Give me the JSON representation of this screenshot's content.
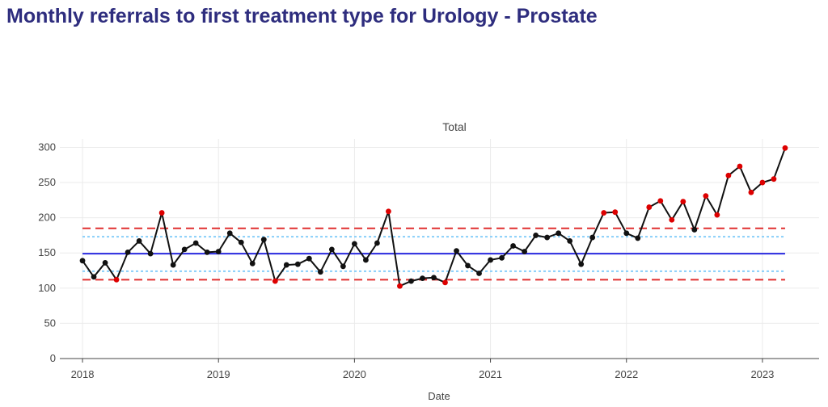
{
  "page": {
    "title": "Monthly referrals to first treatment type for Urology - Prostate"
  },
  "chart_data": {
    "type": "line",
    "title": "Total",
    "xlabel": "Date",
    "ylabel": "",
    "xlim": [
      "2017-11",
      "2023-06"
    ],
    "ylim": [
      0,
      312
    ],
    "grid": true,
    "x_ticks": [
      "2018",
      "2019",
      "2020",
      "2021",
      "2022",
      "2023"
    ],
    "y_ticks": [
      0,
      50,
      100,
      150,
      200,
      250,
      300
    ],
    "colors": {
      "line": "#111111",
      "point_normal": "#111111",
      "point_special": "#dd0000",
      "mean": "#2a2ae0",
      "control_limit": "#e03030",
      "warning_limit": "#87cefa",
      "title": "#2e2d7e"
    },
    "reference_lines": {
      "mean": 149,
      "upper_control": 185,
      "lower_control": 112,
      "upper_warning": 173,
      "lower_warning": 124
    },
    "series": [
      {
        "x": [
          "2018-01",
          "2018-02",
          "2018-03",
          "2018-04",
          "2018-05",
          "2018-06",
          "2018-07",
          "2018-08",
          "2018-09",
          "2018-10",
          "2018-11",
          "2018-12",
          "2019-01",
          "2019-02",
          "2019-03",
          "2019-04",
          "2019-05",
          "2019-06",
          "2019-07",
          "2019-08",
          "2019-09",
          "2019-10",
          "2019-11",
          "2019-12",
          "2020-01",
          "2020-02",
          "2020-03",
          "2020-04",
          "2020-05",
          "2020-06",
          "2020-07",
          "2020-08",
          "2020-09",
          "2020-10",
          "2020-11",
          "2020-12",
          "2021-01",
          "2021-02",
          "2021-03",
          "2021-04",
          "2021-05",
          "2021-06",
          "2021-07",
          "2021-08",
          "2021-09",
          "2021-10",
          "2021-11",
          "2021-12",
          "2022-01",
          "2022-02",
          "2022-03",
          "2022-04",
          "2022-05",
          "2022-06",
          "2022-07",
          "2022-08",
          "2022-09",
          "2022-10",
          "2022-11",
          "2022-12",
          "2023-01",
          "2023-02",
          "2023-03"
        ],
        "values": [
          139,
          116,
          136,
          112,
          151,
          167,
          149,
          207,
          133,
          155,
          164,
          151,
          152,
          178,
          165,
          135,
          169,
          110,
          133,
          134,
          142,
          123,
          155,
          131,
          163,
          140,
          164,
          209,
          103,
          110,
          114,
          115,
          108,
          153,
          132,
          121,
          140,
          143,
          160,
          152,
          175,
          172,
          178,
          167,
          134,
          172,
          207,
          208,
          178,
          171,
          215,
          224,
          197,
          223,
          183,
          231,
          204,
          260,
          273,
          236,
          250,
          255,
          299
        ],
        "special": [
          false,
          false,
          false,
          true,
          false,
          false,
          false,
          true,
          false,
          false,
          false,
          false,
          false,
          false,
          false,
          false,
          false,
          true,
          false,
          false,
          false,
          false,
          false,
          false,
          false,
          false,
          false,
          true,
          true,
          false,
          false,
          false,
          true,
          false,
          false,
          false,
          false,
          false,
          false,
          false,
          false,
          false,
          false,
          false,
          false,
          false,
          true,
          true,
          false,
          false,
          true,
          true,
          true,
          true,
          false,
          true,
          true,
          true,
          true,
          true,
          true,
          true,
          true
        ]
      }
    ]
  }
}
